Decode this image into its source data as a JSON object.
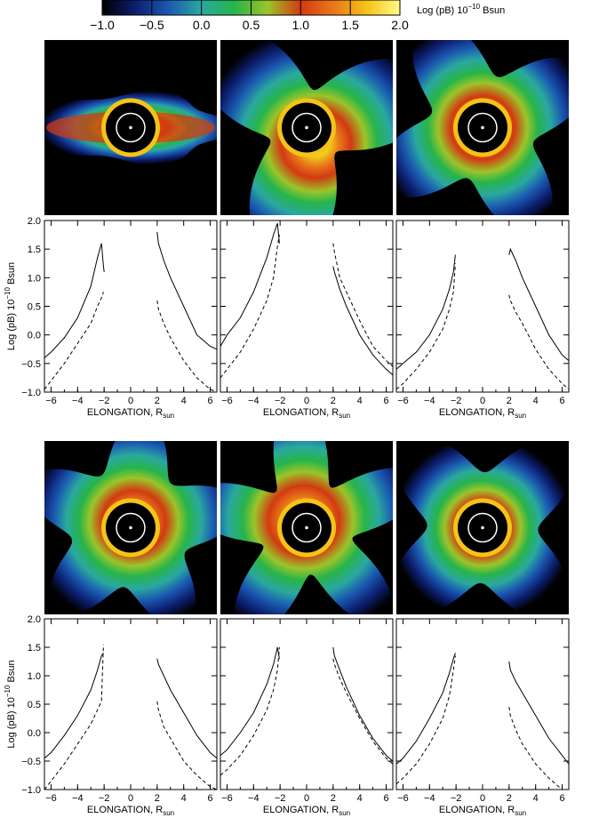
{
  "colorbar": {
    "ticks": [
      "−1.0",
      "−0.5",
      "0.0",
      "0.5",
      "1.0",
      "1.5",
      "2.0"
    ],
    "label_main": "Log (pB) 10",
    "label_exp": "−10",
    "label_unit": " Bsun",
    "range": [
      -1.0,
      2.0
    ],
    "colors": [
      "#000000",
      "#0c1e6e",
      "#1a58b0",
      "#2aa8a0",
      "#27b44a",
      "#9bc42a",
      "#d23a12",
      "#e8781a",
      "#f4c418",
      "#fffb8a"
    ]
  },
  "axis": {
    "xlabel_main": "ELONGATION, R",
    "xlabel_sub": "sun",
    "ylabel_main": "Log (pB) 10",
    "ylabel_exp": "−10",
    "ylabel_unit": " Bsun",
    "xticks": [
      "−6",
      "−4",
      "−2",
      "0",
      "2",
      "4",
      "6"
    ],
    "yticks": [
      "−1.0",
      "−0.5",
      "0.0",
      "0.5",
      "1.0",
      "1.5",
      "2.0"
    ]
  },
  "chart_data": [
    {
      "type": "line",
      "panel": "row1-left",
      "xlim": [
        -6.5,
        6.5
      ],
      "ylim": [
        -1,
        2
      ],
      "lobes": 5,
      "spread": 0.12,
      "series": [
        {
          "style": "solid",
          "x": [
            -6.5,
            -6,
            -5,
            -4,
            -3,
            -2.5,
            -2.2,
            -2.05,
            -2.0
          ],
          "y": [
            -0.4,
            -0.3,
            -0.05,
            0.3,
            0.85,
            1.35,
            1.6,
            1.2,
            1.1
          ]
        },
        {
          "style": "dashed",
          "x": [
            -6.5,
            -6,
            -5,
            -4,
            -3,
            -2.5,
            -2.2,
            -2.05
          ],
          "y": [
            -0.95,
            -0.8,
            -0.5,
            -0.15,
            0.2,
            0.5,
            0.65,
            0.75
          ]
        },
        {
          "style": "solid",
          "x": [
            2.0,
            2.1,
            2.5,
            3,
            4,
            5,
            6,
            6.5
          ],
          "y": [
            1.8,
            1.6,
            1.3,
            1.0,
            0.5,
            0.0,
            -0.2,
            -0.25
          ]
        },
        {
          "style": "dashed",
          "x": [
            2.0,
            2.1,
            2.5,
            3,
            4,
            5,
            6,
            6.5
          ],
          "y": [
            0.6,
            0.45,
            0.2,
            -0.05,
            -0.45,
            -0.75,
            -0.95,
            -1.0
          ]
        }
      ]
    },
    {
      "type": "line",
      "panel": "row1-mid",
      "xlim": [
        -6.5,
        6.5
      ],
      "ylim": [
        -1,
        2
      ],
      "lobes": 3,
      "spread": 0.55,
      "series": [
        {
          "style": "solid",
          "x": [
            -6.5,
            -6,
            -5,
            -4,
            -3,
            -2.5,
            -2.2,
            -2.05
          ],
          "y": [
            -0.2,
            0.0,
            0.3,
            0.75,
            1.35,
            1.75,
            1.95,
            1.6
          ]
        },
        {
          "style": "dashed",
          "x": [
            -6.5,
            -6,
            -5,
            -4,
            -3,
            -2.5,
            -2.2,
            -2.05
          ],
          "y": [
            -0.75,
            -0.6,
            -0.3,
            0.1,
            0.6,
            1.0,
            1.55,
            1.75
          ]
        },
        {
          "style": "solid",
          "x": [
            2.0,
            2.1,
            2.5,
            3,
            4,
            5,
            6,
            6.5
          ],
          "y": [
            1.2,
            1.1,
            0.8,
            0.5,
            0.0,
            -0.35,
            -0.6,
            -0.7
          ]
        },
        {
          "style": "dashed",
          "x": [
            2.0,
            2.1,
            2.5,
            3,
            4,
            5,
            6,
            6.5
          ],
          "y": [
            1.6,
            1.45,
            1.0,
            0.75,
            0.25,
            -0.2,
            -0.45,
            -0.55
          ]
        }
      ]
    },
    {
      "type": "line",
      "panel": "row1-right",
      "xlim": [
        -6.5,
        6.5
      ],
      "ylim": [
        -1,
        2
      ],
      "lobes": 4,
      "spread": 0.38,
      "series": [
        {
          "style": "solid",
          "x": [
            -6.5,
            -6,
            -5,
            -4,
            -3,
            -2.5,
            -2.2,
            -2.05
          ],
          "y": [
            -0.6,
            -0.5,
            -0.3,
            0.0,
            0.45,
            0.8,
            1.1,
            1.4
          ]
        },
        {
          "style": "dashed",
          "x": [
            -6.5,
            -6,
            -5,
            -4,
            -3,
            -2.5,
            -2.2,
            -2.05
          ],
          "y": [
            -0.95,
            -0.85,
            -0.6,
            -0.3,
            0.1,
            0.45,
            0.75,
            1.25
          ]
        },
        {
          "style": "solid",
          "x": [
            2.0,
            2.1,
            2.5,
            3,
            4,
            5,
            6,
            6.5
          ],
          "y": [
            1.4,
            1.5,
            1.3,
            1.0,
            0.5,
            0.0,
            -0.35,
            -0.45
          ]
        },
        {
          "style": "dashed",
          "x": [
            2.0,
            2.1,
            2.5,
            3,
            4,
            5,
            6,
            6.5
          ],
          "y": [
            0.7,
            0.6,
            0.4,
            0.2,
            -0.25,
            -0.6,
            -0.85,
            -0.95
          ]
        }
      ]
    },
    {
      "type": "line",
      "panel": "row2-left",
      "xlim": [
        -6.5,
        6.5
      ],
      "ylim": [
        -1,
        2
      ],
      "lobes": 5,
      "spread": 0.3,
      "series": [
        {
          "style": "solid",
          "x": [
            -6.5,
            -6,
            -5,
            -4,
            -3,
            -2.5,
            -2.2,
            -2.05
          ],
          "y": [
            -0.45,
            -0.35,
            -0.05,
            0.3,
            0.75,
            1.1,
            1.35,
            1.4
          ]
        },
        {
          "style": "dashed",
          "x": [
            -6.5,
            -6,
            -5,
            -4,
            -3,
            -2.5,
            -2.2,
            -2.05
          ],
          "y": [
            -1.0,
            -0.85,
            -0.55,
            -0.2,
            0.15,
            0.4,
            0.55,
            1.55
          ]
        },
        {
          "style": "solid",
          "x": [
            2.0,
            2.1,
            2.5,
            3,
            4,
            5,
            6,
            6.5
          ],
          "y": [
            1.3,
            1.2,
            1.0,
            0.75,
            0.35,
            -0.05,
            -0.35,
            -0.45
          ]
        },
        {
          "style": "dashed",
          "x": [
            2.0,
            2.1,
            2.5,
            3,
            4,
            5,
            6,
            6.5
          ],
          "y": [
            0.55,
            0.4,
            0.1,
            -0.1,
            -0.5,
            -0.75,
            -0.95,
            -1.0
          ]
        }
      ]
    },
    {
      "type": "line",
      "panel": "row2-mid",
      "xlim": [
        -6.5,
        6.5
      ],
      "ylim": [
        -1,
        2
      ],
      "lobes": 5,
      "spread": 0.45,
      "series": [
        {
          "style": "solid",
          "x": [
            -6.5,
            -6,
            -5,
            -4,
            -3,
            -2.5,
            -2.2,
            -2.05
          ],
          "y": [
            -0.4,
            -0.3,
            0.0,
            0.35,
            0.85,
            1.2,
            1.5,
            1.3
          ]
        },
        {
          "style": "dashed",
          "x": [
            -6.5,
            -6,
            -5,
            -4,
            -3,
            -2.5,
            -2.2,
            -2.05
          ],
          "y": [
            -0.75,
            -0.65,
            -0.4,
            -0.05,
            0.4,
            0.75,
            1.1,
            1.5
          ]
        },
        {
          "style": "solid",
          "x": [
            2.0,
            2.1,
            2.5,
            3,
            4,
            5,
            6,
            6.5
          ],
          "y": [
            1.5,
            1.35,
            1.1,
            0.8,
            0.3,
            -0.1,
            -0.4,
            -0.5
          ]
        },
        {
          "style": "dashed",
          "x": [
            2.0,
            2.1,
            2.5,
            3,
            4,
            5,
            6,
            6.5
          ],
          "y": [
            1.3,
            1.2,
            0.95,
            0.7,
            0.25,
            -0.15,
            -0.45,
            -0.55
          ]
        }
      ]
    },
    {
      "type": "line",
      "panel": "row2-right",
      "xlim": [
        -6.5,
        6.5
      ],
      "ylim": [
        -1,
        2
      ],
      "lobes": 4,
      "spread": 0.35,
      "series": [
        {
          "style": "solid",
          "x": [
            -6.5,
            -6,
            -5,
            -4,
            -3,
            -2.5,
            -2.2,
            -2.05
          ],
          "y": [
            -0.55,
            -0.45,
            -0.15,
            0.25,
            0.7,
            1.05,
            1.3,
            1.4
          ]
        },
        {
          "style": "dashed",
          "x": [
            -6.5,
            -6,
            -5,
            -4,
            -3,
            -2.5,
            -2.2,
            -2.05
          ],
          "y": [
            -0.9,
            -0.8,
            -0.55,
            -0.2,
            0.25,
            0.65,
            1.1,
            1.35
          ]
        },
        {
          "style": "solid",
          "x": [
            2.0,
            2.1,
            2.5,
            3,
            4,
            5,
            6,
            6.5
          ],
          "y": [
            1.25,
            1.1,
            0.9,
            0.7,
            0.3,
            -0.1,
            -0.4,
            -0.55
          ]
        },
        {
          "style": "dashed",
          "x": [
            2.0,
            2.1,
            2.5,
            3,
            4,
            5,
            6,
            6.5
          ],
          "y": [
            0.45,
            0.3,
            0.05,
            -0.2,
            -0.55,
            -0.8,
            -1.0,
            -1.0
          ]
        }
      ]
    }
  ]
}
